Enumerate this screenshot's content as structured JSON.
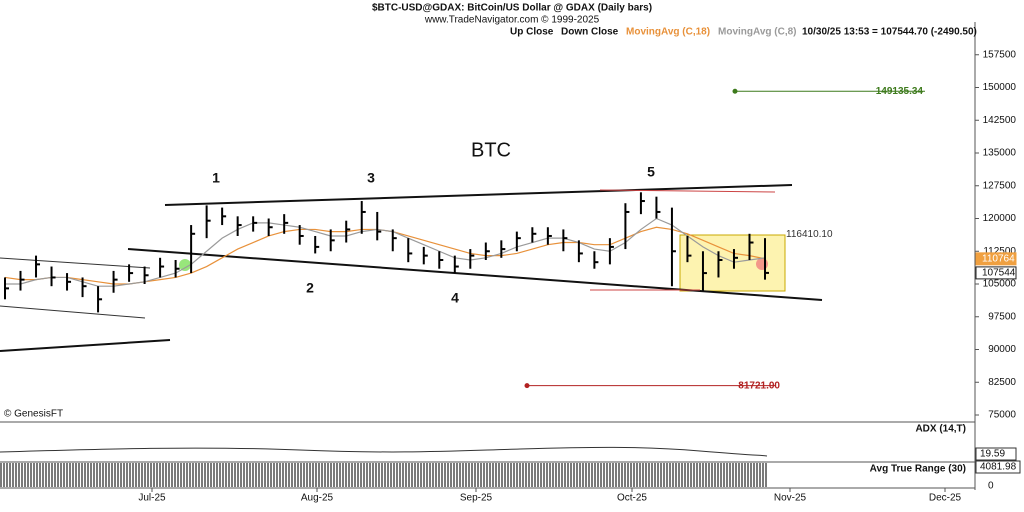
{
  "chart_data": {
    "type": "ohlc",
    "title": "$BTC-USD@GDAX:  BitCoin/US Dollar @ GDAX  (Daily bars)",
    "subtitle": "www.TradeNavigator.com © 1999-2025",
    "legend": [
      "Up Close",
      "Down Close"
    ],
    "quote": "10/30/25 13:53 = 107544.70 (-2490.50)",
    "ylim": [
      73400,
      165000
    ],
    "yticks": [
      75000,
      82500,
      90000,
      97500,
      105000,
      112500,
      120000,
      127500,
      135000,
      142500,
      150000,
      157500
    ],
    "xtick_labels": [
      "Jul-25",
      "Aug-25",
      "Sep-25",
      "Oct-25",
      "Nov-25",
      "Dec-25"
    ],
    "high": [
      106500,
      108000,
      111500,
      109000,
      107500,
      106500,
      104500,
      108000,
      109500,
      109000,
      111000,
      110500,
      118500,
      123000,
      122500,
      120500,
      120500,
      120000,
      121000,
      118500,
      116000,
      117500,
      119500,
      124000,
      121500,
      117500,
      115500,
      113500,
      112500,
      111500,
      113000,
      114500,
      115000,
      117000,
      118000,
      118000,
      117500,
      115000,
      112500,
      115500,
      123500,
      126000,
      125000,
      122500,
      116000,
      112500,
      112500,
      113000,
      116500,
      115500
    ],
    "low": [
      101500,
      103500,
      106500,
      104500,
      103500,
      102000,
      98500,
      103000,
      105500,
      105000,
      106500,
      106500,
      107500,
      115500,
      118500,
      116000,
      117000,
      116000,
      116500,
      114000,
      112000,
      112500,
      114500,
      116500,
      115000,
      112500,
      110000,
      109500,
      108500,
      107500,
      108500,
      110500,
      111000,
      112500,
      114500,
      114000,
      112500,
      110000,
      108500,
      109500,
      113000,
      121000,
      120000,
      104500,
      110000,
      103500,
      106500,
      108500,
      110500,
      106000
    ],
    "close": [
      104000,
      106000,
      109500,
      106500,
      105500,
      104500,
      101500,
      106000,
      107500,
      107000,
      109000,
      108500,
      116500,
      119500,
      120500,
      118500,
      119000,
      118000,
      119000,
      116000,
      113500,
      115000,
      117500,
      121500,
      117000,
      115500,
      112000,
      111500,
      110500,
      109000,
      111500,
      112500,
      113000,
      115500,
      116500,
      116000,
      115500,
      112000,
      110000,
      113500,
      121500,
      124000,
      121500,
      112500,
      111500,
      107500,
      110500,
      111000,
      114500,
      107544
    ],
    "series": [
      {
        "name": "MovingAvg (C,18)",
        "color": "#e8913a",
        "values": [
          106500,
          106000,
          106000,
          106500,
          106500,
          106000,
          105500,
          105000,
          105000,
          105500,
          106000,
          106500,
          107500,
          109000,
          111000,
          113000,
          114500,
          116000,
          117000,
          117500,
          117500,
          117000,
          117000,
          117500,
          117500,
          117000,
          116000,
          115000,
          114000,
          113000,
          112000,
          111500,
          111500,
          112000,
          113000,
          114000,
          114500,
          114500,
          114000,
          114000,
          115500,
          117000,
          118000,
          117500,
          116500,
          115000,
          113500,
          112000,
          111500,
          110764
        ]
      },
      {
        "name": "MovingAvg (C,8)",
        "color": "#9a9a9a",
        "values": [
          105000,
          105000,
          106000,
          106500,
          106500,
          105500,
          104500,
          104500,
          105000,
          105500,
          106500,
          107500,
          109500,
          112500,
          115500,
          117500,
          119000,
          119000,
          118500,
          118000,
          117000,
          116000,
          116000,
          117000,
          117500,
          117000,
          115500,
          114000,
          112500,
          111000,
          110500,
          111000,
          112000,
          113500,
          114500,
          115500,
          115500,
          114500,
          113000,
          112500,
          114500,
          117500,
          120000,
          118500,
          116000,
          113500,
          111500,
          110000,
          110500,
          111000
        ]
      }
    ],
    "price_tags": [
      {
        "value": 110764,
        "color": "#f0a040"
      },
      {
        "value": 107544,
        "color": "#222"
      }
    ],
    "levels": [
      {
        "value": 149135.34,
        "label": "149135.34",
        "color": "#3d7a1c"
      },
      {
        "value": 116410.1,
        "label": "116410.10",
        "color": "#333"
      },
      {
        "value": 81721,
        "label": "81721.00",
        "color": "#b22222"
      }
    ],
    "annotations": [
      "BTC",
      "1",
      "2",
      "3",
      "4",
      "5"
    ],
    "copyright": "© GenesisFT",
    "adx": {
      "label": "ADX (14,T)",
      "value": 19.59
    },
    "atr": {
      "label": "Avg True Range (30)",
      "value": 4081.98,
      "axis_min": 0
    }
  }
}
